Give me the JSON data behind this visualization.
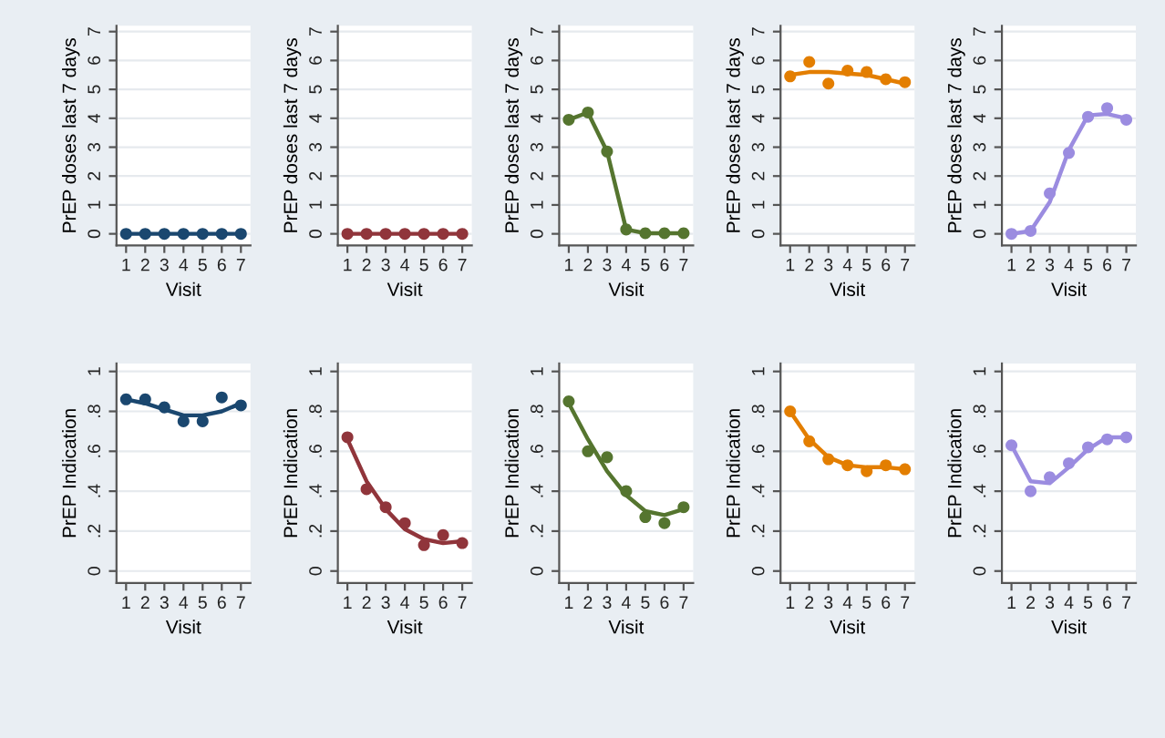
{
  "chart_data": [
    {
      "type": "line",
      "ylabel": "PrEP doses last 7 days",
      "xlabel": "Visit",
      "x": [
        1,
        2,
        3,
        4,
        5,
        6,
        7
      ],
      "xlim": [
        0.5,
        7.5
      ],
      "xticks": [
        1,
        2,
        3,
        4,
        5,
        6,
        7
      ],
      "ylim": [
        -0.4,
        7.2
      ],
      "yticks": [
        0,
        1,
        2,
        3,
        4,
        5,
        6,
        7
      ],
      "grid": "y",
      "series": [
        {
          "type": "scatter",
          "marker": "circle",
          "color": "#1a476f",
          "values": [
            0,
            0,
            0,
            0,
            0,
            0,
            0
          ]
        },
        {
          "color": "#1a476f",
          "values": [
            0,
            0,
            0,
            0,
            0,
            0,
            0
          ]
        }
      ]
    },
    {
      "type": "line",
      "ylabel": "PrEP doses last 7 days",
      "xlabel": "Visit",
      "x": [
        1,
        2,
        3,
        4,
        5,
        6,
        7
      ],
      "xlim": [
        0.5,
        7.5
      ],
      "xticks": [
        1,
        2,
        3,
        4,
        5,
        6,
        7
      ],
      "ylim": [
        -0.4,
        7.2
      ],
      "yticks": [
        0,
        1,
        2,
        3,
        4,
        5,
        6,
        7
      ],
      "grid": "y",
      "series": [
        {
          "type": "scatter",
          "marker": "circle",
          "color": "#90353b",
          "values": [
            0,
            0,
            0,
            0,
            0,
            0,
            0
          ]
        },
        {
          "color": "#90353b",
          "values": [
            0,
            0,
            0,
            0,
            0,
            0,
            0
          ]
        }
      ]
    },
    {
      "type": "line",
      "ylabel": "PrEP doses last 7 days",
      "xlabel": "Visit",
      "x": [
        1,
        2,
        3,
        4,
        5,
        6,
        7
      ],
      "xlim": [
        0.5,
        7.5
      ],
      "xticks": [
        1,
        2,
        3,
        4,
        5,
        6,
        7
      ],
      "ylim": [
        -0.4,
        7.2
      ],
      "yticks": [
        0,
        1,
        2,
        3,
        4,
        5,
        6,
        7
      ],
      "grid": "y",
      "series": [
        {
          "type": "scatter",
          "marker": "circle",
          "color": "#55752f",
          "values": [
            3.95,
            4.2,
            2.85,
            0.15,
            0.02,
            0.02,
            0.02
          ]
        },
        {
          "color": "#55752f",
          "values": [
            3.95,
            4.2,
            2.85,
            0.15,
            0.02,
            0.02,
            0.02
          ]
        }
      ]
    },
    {
      "type": "line",
      "ylabel": "PrEP doses last 7 days",
      "xlabel": "Visit",
      "x": [
        1,
        2,
        3,
        4,
        5,
        6,
        7
      ],
      "xlim": [
        0.5,
        7.5
      ],
      "xticks": [
        1,
        2,
        3,
        4,
        5,
        6,
        7
      ],
      "ylim": [
        -0.4,
        7.2
      ],
      "yticks": [
        0,
        1,
        2,
        3,
        4,
        5,
        6,
        7
      ],
      "grid": "y",
      "series": [
        {
          "type": "scatter",
          "marker": "circle",
          "color": "#e37e00",
          "values": [
            5.45,
            5.95,
            5.2,
            5.65,
            5.6,
            5.35,
            5.25
          ]
        },
        {
          "color": "#e37e00",
          "values": [
            5.5,
            5.6,
            5.6,
            5.55,
            5.5,
            5.35,
            5.2
          ]
        }
      ]
    },
    {
      "type": "line",
      "ylabel": "PrEP doses last 7 days",
      "xlabel": "Visit",
      "x": [
        1,
        2,
        3,
        4,
        5,
        6,
        7
      ],
      "xlim": [
        0.5,
        7.5
      ],
      "xticks": [
        1,
        2,
        3,
        4,
        5,
        6,
        7
      ],
      "ylim": [
        -0.4,
        7.2
      ],
      "yticks": [
        0,
        1,
        2,
        3,
        4,
        5,
        6,
        7
      ],
      "grid": "y",
      "series": [
        {
          "type": "scatter",
          "marker": "circle",
          "color": "#9b8ce0",
          "values": [
            0,
            0.1,
            1.4,
            2.8,
            4.05,
            4.35,
            3.95
          ]
        },
        {
          "color": "#9b8ce0",
          "values": [
            0,
            0.1,
            1.1,
            2.9,
            4.1,
            4.15,
            4.0
          ]
        }
      ]
    },
    {
      "type": "line",
      "ylabel": "PrEP Indication",
      "xlabel": "Visit",
      "x": [
        1,
        2,
        3,
        4,
        5,
        6,
        7
      ],
      "xlim": [
        0.5,
        7.5
      ],
      "xticks": [
        1,
        2,
        3,
        4,
        5,
        6,
        7
      ],
      "ylim": [
        -0.06,
        1.04
      ],
      "yticks": [
        0,
        {
          "value": 0.2,
          "label": ".2"
        },
        {
          "value": 0.4,
          "label": ".4"
        },
        {
          "value": 0.6,
          "label": ".6"
        },
        {
          "value": 0.8,
          "label": ".8"
        },
        1
      ],
      "grid": "y",
      "series": [
        {
          "type": "scatter",
          "marker": "circle",
          "color": "#1a476f",
          "values": [
            0.86,
            0.86,
            0.82,
            0.75,
            0.75,
            0.87,
            0.83
          ]
        },
        {
          "color": "#1a476f",
          "values": [
            0.86,
            0.84,
            0.81,
            0.78,
            0.78,
            0.8,
            0.84
          ]
        }
      ]
    },
    {
      "type": "line",
      "ylabel": "PrEP Indication",
      "xlabel": "Visit",
      "x": [
        1,
        2,
        3,
        4,
        5,
        6,
        7
      ],
      "xlim": [
        0.5,
        7.5
      ],
      "xticks": [
        1,
        2,
        3,
        4,
        5,
        6,
        7
      ],
      "ylim": [
        -0.06,
        1.04
      ],
      "yticks": [
        0,
        {
          "value": 0.2,
          "label": ".2"
        },
        {
          "value": 0.4,
          "label": ".4"
        },
        {
          "value": 0.6,
          "label": ".6"
        },
        {
          "value": 0.8,
          "label": ".8"
        },
        1
      ],
      "grid": "y",
      "series": [
        {
          "type": "scatter",
          "marker": "circle",
          "color": "#90353b",
          "values": [
            0.67,
            0.41,
            0.32,
            0.24,
            0.13,
            0.18,
            0.14
          ]
        },
        {
          "color": "#90353b",
          "values": [
            0.66,
            0.45,
            0.31,
            0.21,
            0.16,
            0.14,
            0.15
          ]
        }
      ]
    },
    {
      "type": "line",
      "ylabel": "PrEP Indication",
      "xlabel": "Visit",
      "x": [
        1,
        2,
        3,
        4,
        5,
        6,
        7
      ],
      "xlim": [
        0.5,
        7.5
      ],
      "xticks": [
        1,
        2,
        3,
        4,
        5,
        6,
        7
      ],
      "ylim": [
        -0.06,
        1.04
      ],
      "yticks": [
        0,
        {
          "value": 0.2,
          "label": ".2"
        },
        {
          "value": 0.4,
          "label": ".4"
        },
        {
          "value": 0.6,
          "label": ".6"
        },
        {
          "value": 0.8,
          "label": ".8"
        },
        1
      ],
      "grid": "y",
      "series": [
        {
          "type": "scatter",
          "marker": "circle",
          "color": "#55752f",
          "values": [
            0.85,
            0.6,
            0.57,
            0.4,
            0.27,
            0.24,
            0.32
          ]
        },
        {
          "color": "#55752f",
          "values": [
            0.84,
            0.66,
            0.5,
            0.38,
            0.3,
            0.28,
            0.31
          ]
        }
      ]
    },
    {
      "type": "line",
      "ylabel": "PrEP Indication",
      "xlabel": "Visit",
      "x": [
        1,
        2,
        3,
        4,
        5,
        6,
        7
      ],
      "xlim": [
        0.5,
        7.5
      ],
      "xticks": [
        1,
        2,
        3,
        4,
        5,
        6,
        7
      ],
      "ylim": [
        -0.06,
        1.04
      ],
      "yticks": [
        0,
        {
          "value": 0.2,
          "label": ".2"
        },
        {
          "value": 0.4,
          "label": ".4"
        },
        {
          "value": 0.6,
          "label": ".6"
        },
        {
          "value": 0.8,
          "label": ".8"
        },
        1
      ],
      "grid": "y",
      "series": [
        {
          "type": "scatter",
          "marker": "circle",
          "color": "#e37e00",
          "values": [
            0.8,
            0.65,
            0.56,
            0.53,
            0.5,
            0.53,
            0.51
          ]
        },
        {
          "color": "#e37e00",
          "values": [
            0.8,
            0.66,
            0.57,
            0.53,
            0.52,
            0.52,
            0.51
          ]
        }
      ]
    },
    {
      "type": "line",
      "ylabel": "PrEP Indication",
      "xlabel": "Visit",
      "x": [
        1,
        2,
        3,
        4,
        5,
        6,
        7
      ],
      "xlim": [
        0.5,
        7.5
      ],
      "xticks": [
        1,
        2,
        3,
        4,
        5,
        6,
        7
      ],
      "ylim": [
        -0.06,
        1.04
      ],
      "yticks": [
        0,
        {
          "value": 0.2,
          "label": ".2"
        },
        {
          "value": 0.4,
          "label": ".4"
        },
        {
          "value": 0.6,
          "label": ".6"
        },
        {
          "value": 0.8,
          "label": ".8"
        },
        1
      ],
      "grid": "y",
      "series": [
        {
          "type": "scatter",
          "marker": "circle",
          "color": "#9b8ce0",
          "values": [
            0.63,
            0.4,
            0.47,
            0.54,
            0.62,
            0.66,
            0.67
          ]
        },
        {
          "color": "#9b8ce0",
          "values": [
            0.63,
            0.45,
            0.44,
            0.52,
            0.61,
            0.67,
            0.67
          ]
        }
      ]
    }
  ]
}
